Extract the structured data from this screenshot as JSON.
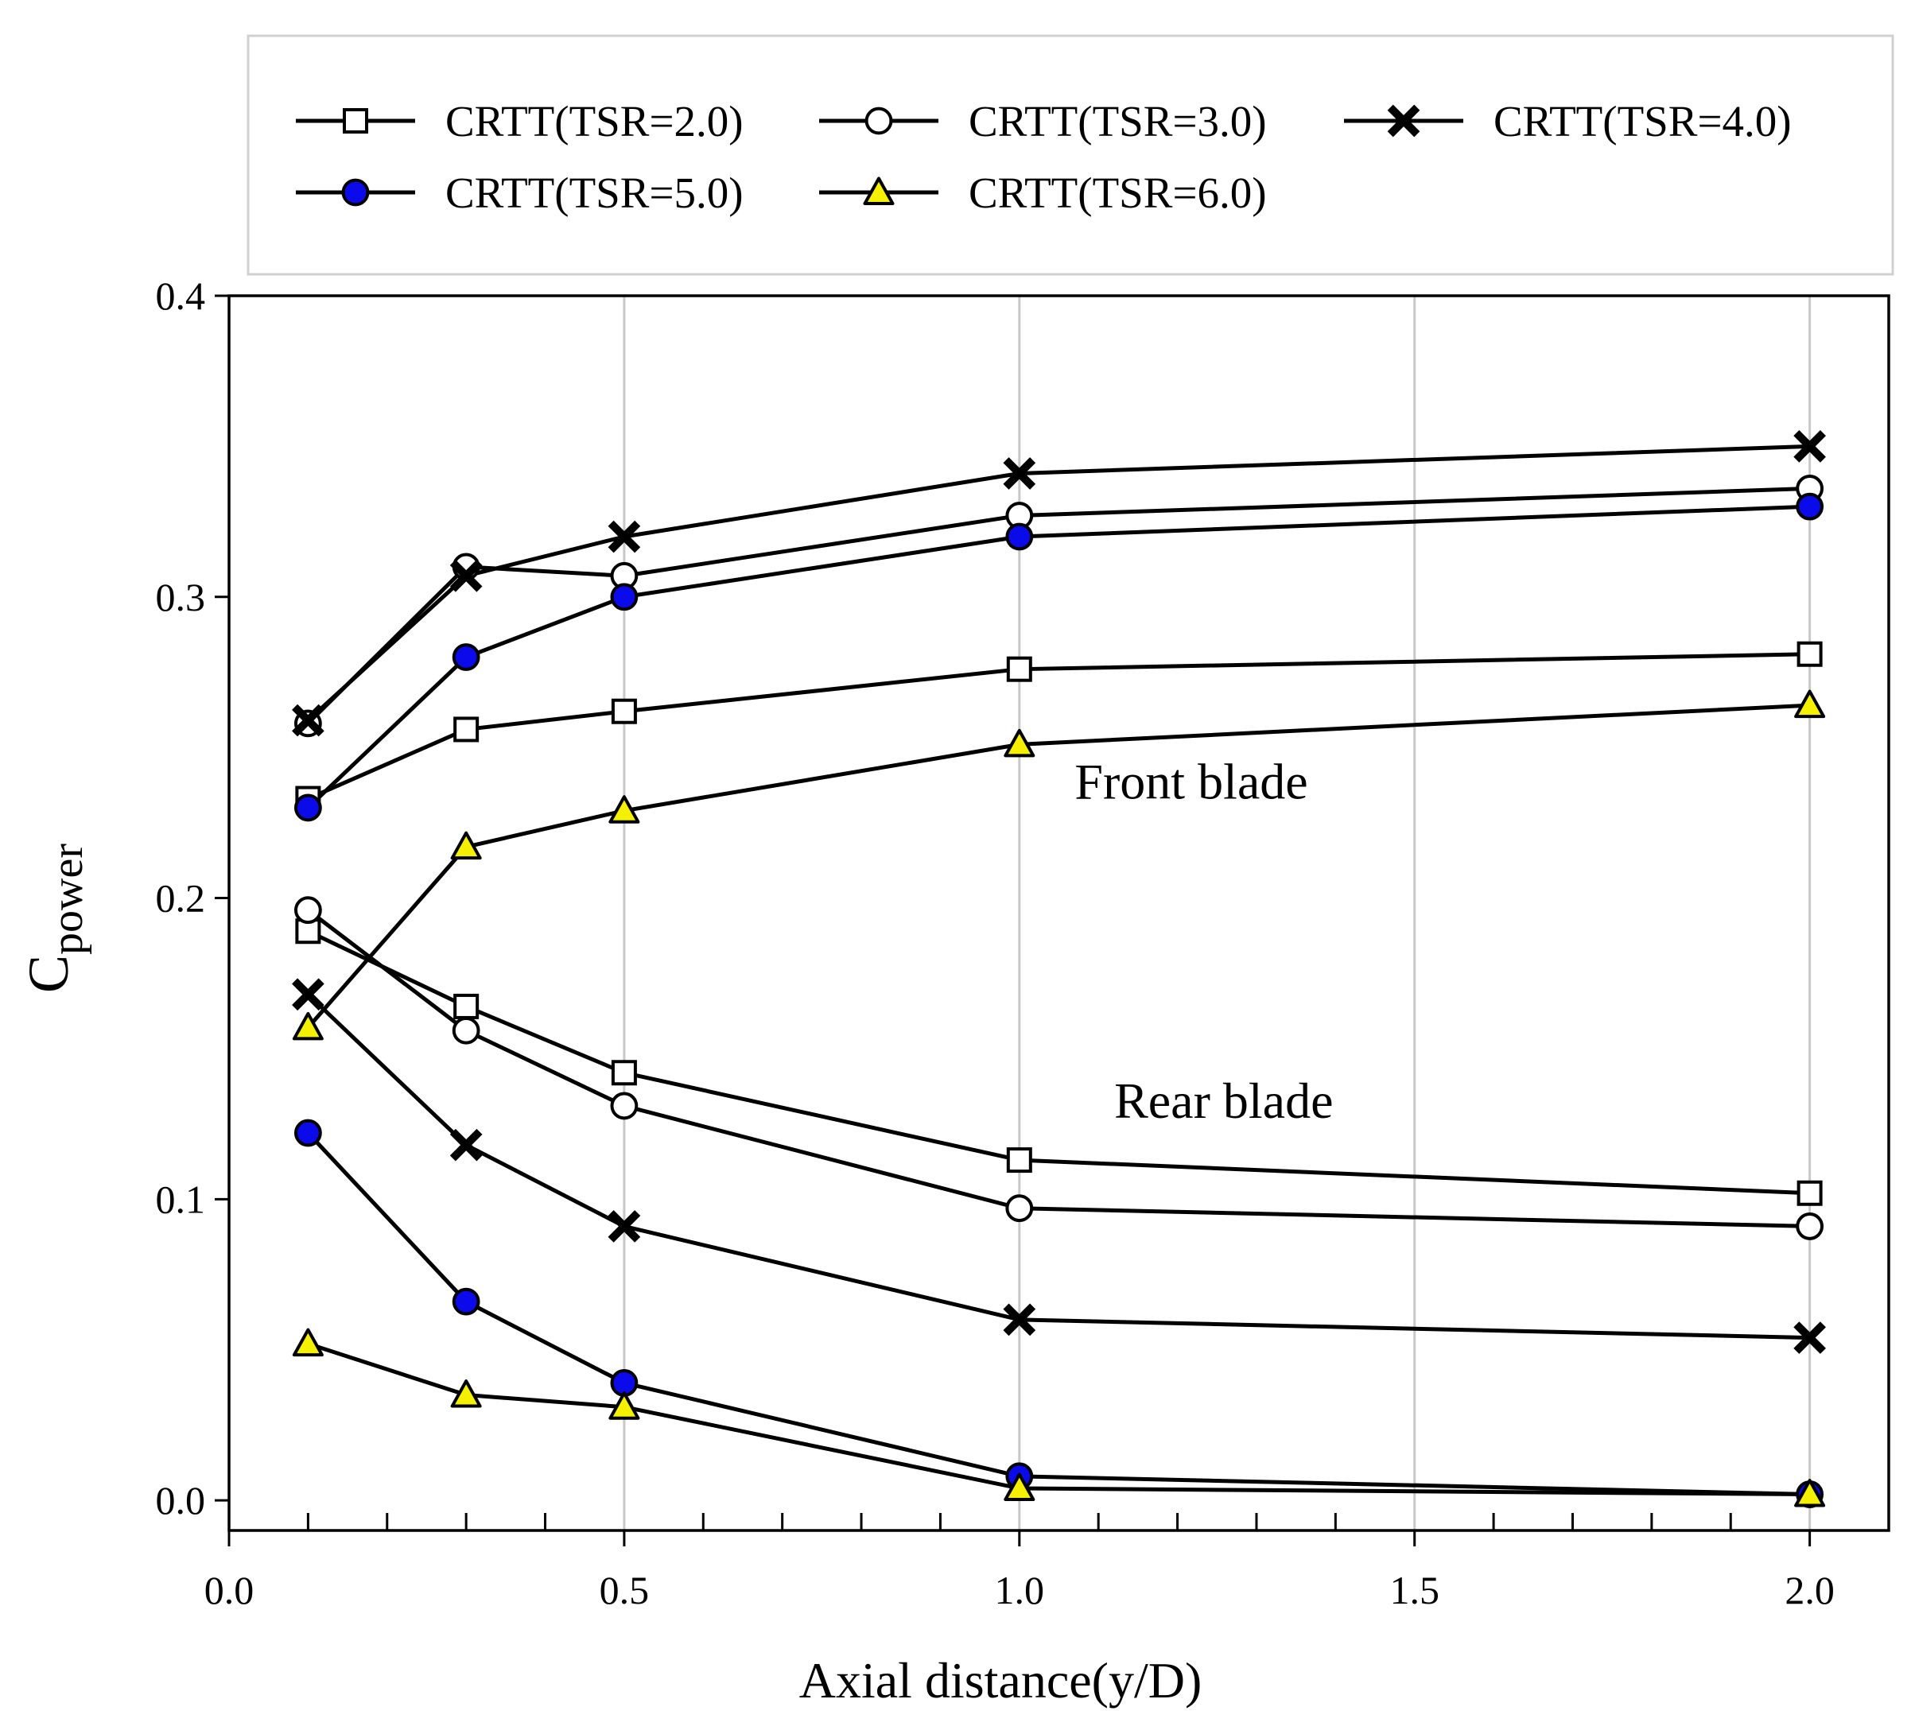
{
  "chart_data": {
    "type": "line",
    "title": "",
    "xlabel": "Axial distance(y/D)",
    "ylabel": "C",
    "ylabel_subscript": "power",
    "xlim": [
      0.0,
      2.1
    ],
    "ylim": [
      -0.01,
      0.4
    ],
    "xticks": [
      0.0,
      0.5,
      1.0,
      1.5,
      2.0
    ],
    "xtick_labels": [
      "0.0",
      "0.5",
      "1.0",
      "1.5",
      "2.0"
    ],
    "yticks": [
      0.0,
      0.1,
      0.2,
      0.3,
      0.4
    ],
    "ytick_labels": [
      "0.0",
      "0.1",
      "0.2",
      "0.3",
      "0.4"
    ],
    "x_minor_step": 0.1,
    "grid": "vertical",
    "legend_position": "top",
    "x": [
      0.1,
      0.3,
      0.5,
      1.0,
      2.0
    ],
    "groups": [
      {
        "name": "Front blade",
        "series": [
          {
            "name": "CRTT(TSR=2.0)",
            "marker": "square",
            "values": [
              0.233,
              0.256,
              0.262,
              0.276,
              0.281
            ]
          },
          {
            "name": "CRTT(TSR=3.0)",
            "marker": "circle",
            "values": [
              0.258,
              0.31,
              0.307,
              0.327,
              0.336
            ]
          },
          {
            "name": "CRTT(TSR=4.0)",
            "marker": "x",
            "values": [
              0.259,
              0.307,
              0.32,
              0.341,
              0.35
            ]
          },
          {
            "name": "CRTT(TSR=5.0)",
            "marker": "filled-circle",
            "values": [
              0.23,
              0.28,
              0.3,
              0.32,
              0.33
            ]
          },
          {
            "name": "CRTT(TSR=6.0)",
            "marker": "triangle",
            "values": [
              0.157,
              0.217,
              0.229,
              0.251,
              0.264
            ]
          }
        ]
      },
      {
        "name": "Rear blade",
        "series": [
          {
            "name": "CRTT(TSR=2.0)",
            "marker": "square",
            "values": [
              0.189,
              0.164,
              0.142,
              0.113,
              0.102
            ]
          },
          {
            "name": "CRTT(TSR=3.0)",
            "marker": "circle",
            "values": [
              0.196,
              0.156,
              0.131,
              0.097,
              0.091
            ]
          },
          {
            "name": "CRTT(TSR=4.0)",
            "marker": "x",
            "values": [
              0.168,
              0.118,
              0.091,
              0.06,
              0.054
            ]
          },
          {
            "name": "CRTT(TSR=5.0)",
            "marker": "filled-circle",
            "values": [
              0.122,
              0.066,
              0.039,
              0.008,
              0.002
            ]
          },
          {
            "name": "CRTT(TSR=6.0)",
            "marker": "triangle",
            "values": [
              0.052,
              0.035,
              0.031,
              0.004,
              0.002
            ]
          }
        ]
      }
    ],
    "annotations": [
      {
        "text": "Front blade",
        "x": 1.07,
        "y": 0.233
      },
      {
        "text": "Rear blade",
        "x": 1.12,
        "y": 0.127
      }
    ],
    "legend": [
      {
        "label": "CRTT(TSR=2.0)",
        "marker": "square"
      },
      {
        "label": "CRTT(TSR=3.0)",
        "marker": "circle"
      },
      {
        "label": "CRTT(TSR=4.0)",
        "marker": "x"
      },
      {
        "label": "CRTT(TSR=5.0)",
        "marker": "filled-circle"
      },
      {
        "label": "CRTT(TSR=6.0)",
        "marker": "triangle"
      }
    ]
  },
  "colors": {
    "line": "#000000",
    "marker_blue": "#0a0aeb",
    "marker_yellow": "#f5f000",
    "marker_open": "#ffffff",
    "grid": "#c8c8c8"
  }
}
